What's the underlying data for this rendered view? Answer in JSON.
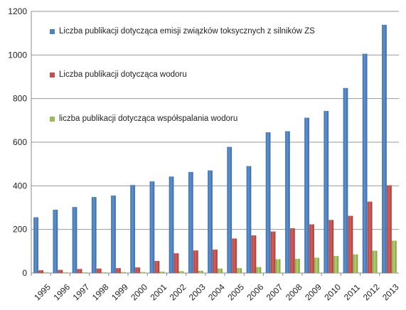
{
  "chart_data": {
    "type": "bar",
    "title": "",
    "xlabel": "",
    "ylabel": "",
    "ylim": [
      0,
      1200
    ],
    "yticks": [
      0,
      200,
      400,
      600,
      800,
      1000,
      1200
    ],
    "grid": true,
    "legend_position": "top-left inside",
    "categories": [
      "1995",
      "1996",
      "1997",
      "1998",
      "1999",
      "2000",
      "2001",
      "2002",
      "2003",
      "2004",
      "2005",
      "2006",
      "2007",
      "2008",
      "2009",
      "2010",
      "2011",
      "2012",
      "2013"
    ],
    "series": [
      {
        "name": "Liczba publikacji dotycząca emisji związków toksycznych z silników ZS",
        "color": "#4F81BD",
        "values": [
          255,
          290,
          302,
          348,
          355,
          403,
          420,
          442,
          463,
          470,
          578,
          490,
          645,
          650,
          712,
          743,
          848,
          1005,
          1138
        ]
      },
      {
        "name": "Liczba publikacji dotycząca wodoru",
        "color": "#C0504D",
        "values": [
          12,
          14,
          18,
          20,
          22,
          25,
          55,
          90,
          103,
          107,
          158,
          172,
          190,
          205,
          223,
          243,
          262,
          327,
          402
        ]
      },
      {
        "name": "liczba publikacji dotycząca współspalania wodoru",
        "color": "#9BBB59",
        "values": [
          3,
          3,
          3,
          3,
          4,
          4,
          6,
          8,
          10,
          20,
          22,
          27,
          63,
          65,
          70,
          78,
          85,
          102,
          148
        ]
      }
    ]
  }
}
